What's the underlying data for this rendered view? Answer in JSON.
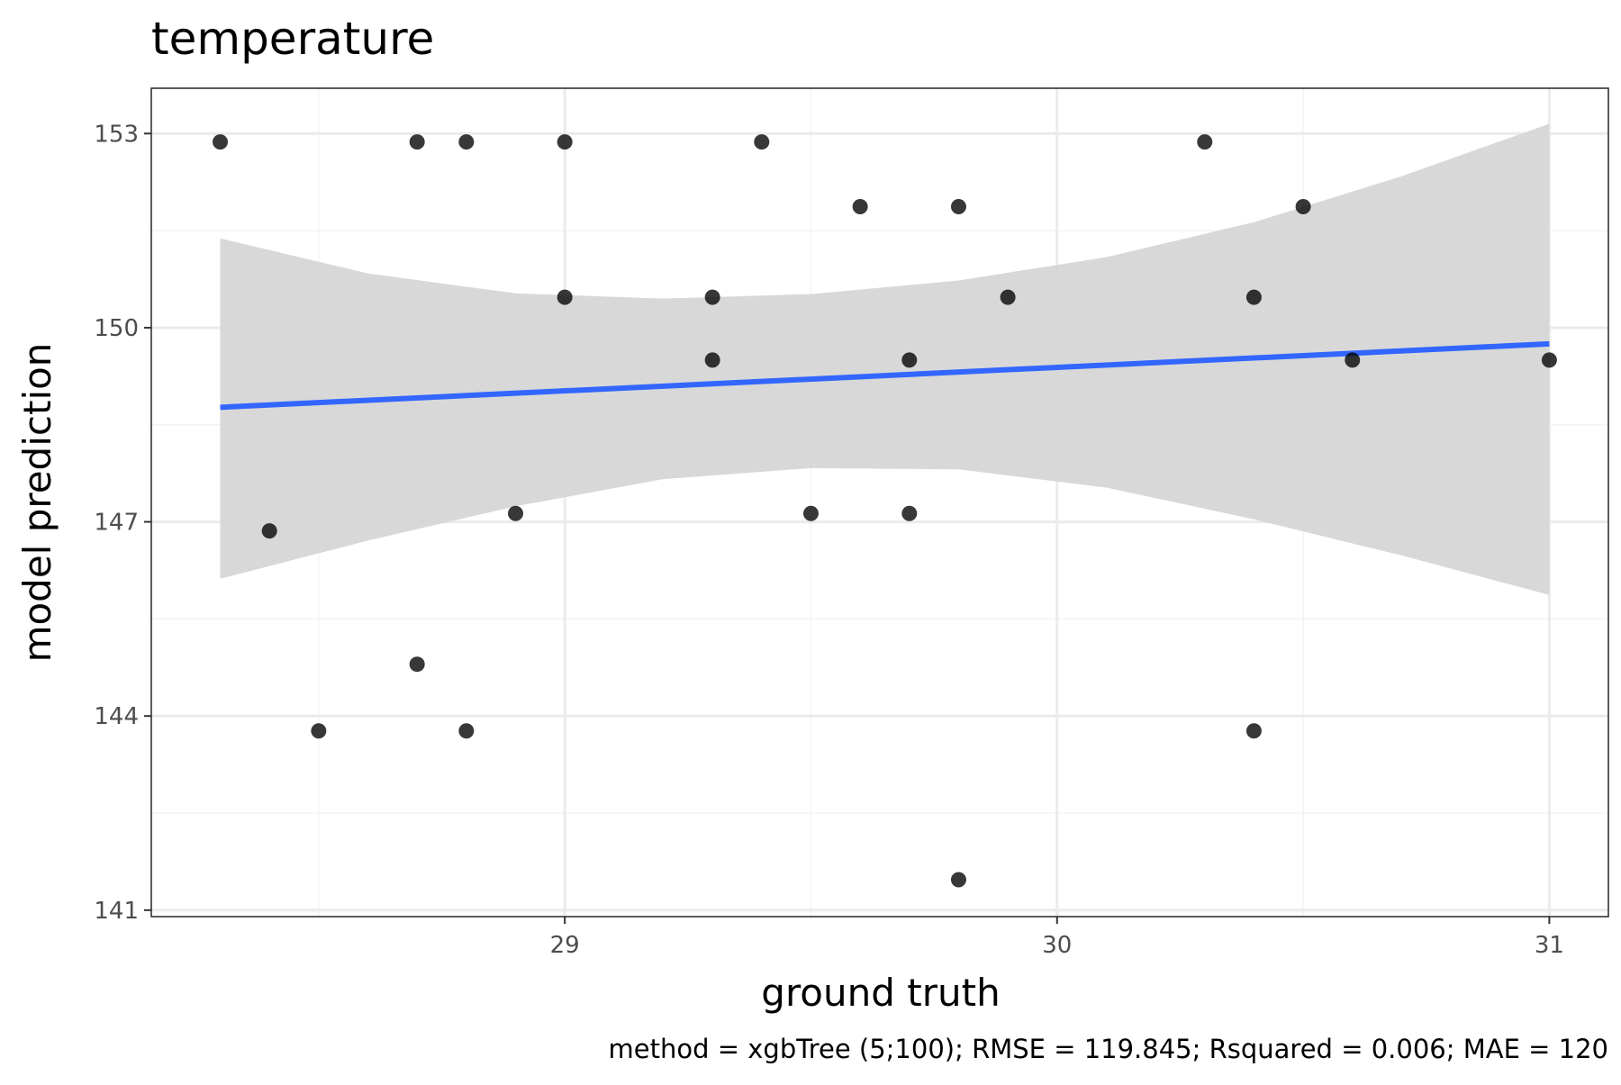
{
  "chart_data": {
    "type": "scatter",
    "title": "temperature",
    "xlabel": "ground truth",
    "ylabel": "model prediction",
    "caption": "method = xgbTree (5;100); RMSE = 119.845; Rsquared = 0.006; MAE = 120",
    "xlim": [
      28.16,
      31.12
    ],
    "ylim": [
      140.9,
      153.7
    ],
    "x_ticks": [
      29,
      30,
      31
    ],
    "y_ticks": [
      141,
      144,
      147,
      150,
      153
    ],
    "x_tick_labels": [
      "29",
      "30",
      "31"
    ],
    "y_tick_labels": [
      "141",
      "144",
      "147",
      "150",
      "153"
    ],
    "grid": true,
    "series": [
      {
        "points": [
          {
            "x": 28.3,
            "y": 152.87
          },
          {
            "x": 28.7,
            "y": 152.87
          },
          {
            "x": 28.8,
            "y": 152.87
          },
          {
            "x": 29.0,
            "y": 152.87
          },
          {
            "x": 29.4,
            "y": 152.87
          },
          {
            "x": 30.3,
            "y": 152.87
          },
          {
            "x": 29.6,
            "y": 151.87
          },
          {
            "x": 29.8,
            "y": 151.87
          },
          {
            "x": 30.5,
            "y": 151.87
          },
          {
            "x": 29.0,
            "y": 150.47
          },
          {
            "x": 29.3,
            "y": 150.47
          },
          {
            "x": 29.9,
            "y": 150.47
          },
          {
            "x": 30.4,
            "y": 150.47
          },
          {
            "x": 29.3,
            "y": 149.5
          },
          {
            "x": 29.7,
            "y": 149.5
          },
          {
            "x": 30.6,
            "y": 149.5
          },
          {
            "x": 31.0,
            "y": 149.5
          },
          {
            "x": 28.9,
            "y": 147.13
          },
          {
            "x": 29.5,
            "y": 147.13
          },
          {
            "x": 29.7,
            "y": 147.13
          },
          {
            "x": 28.4,
            "y": 146.86
          },
          {
            "x": 28.7,
            "y": 144.8
          },
          {
            "x": 28.5,
            "y": 143.77
          },
          {
            "x": 28.8,
            "y": 143.77
          },
          {
            "x": 30.4,
            "y": 143.77
          },
          {
            "x": 29.8,
            "y": 141.47
          }
        ]
      }
    ],
    "trend_line": {
      "x": [
        28.3,
        31.0
      ],
      "y": [
        148.77,
        149.75
      ]
    },
    "confidence_band": {
      "x": [
        28.3,
        28.6,
        28.9,
        29.2,
        29.5,
        29.8,
        30.1,
        30.4,
        30.7,
        31.0
      ],
      "upper": [
        151.38,
        150.84,
        150.53,
        150.45,
        150.52,
        150.73,
        151.09,
        151.63,
        152.34,
        153.15
      ],
      "lower": [
        146.12,
        146.71,
        147.24,
        147.66,
        147.83,
        147.81,
        147.53,
        147.04,
        146.48,
        145.87
      ]
    },
    "colors": {
      "points": "#000000",
      "trend_line": "#3366ff",
      "band": "#d6d6d6",
      "panel_border": "#333333",
      "grid_major": "#ebebeb",
      "grid_minor": "#f3f3f3"
    }
  }
}
